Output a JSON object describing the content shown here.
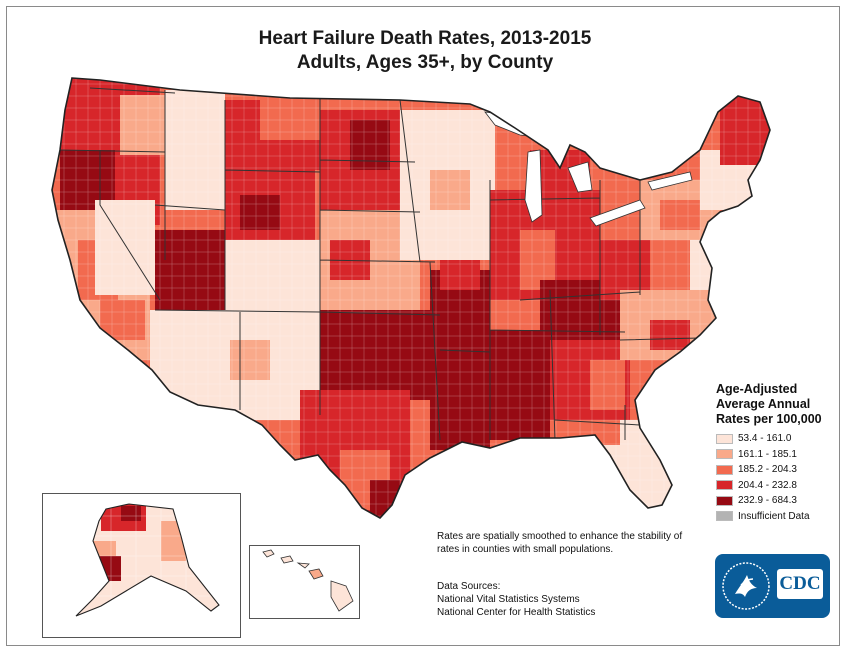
{
  "title": "Heart Failure Death Rates, 2013-2015",
  "subtitle": "Adults, Ages 35+, by County",
  "legend": {
    "title_lines": [
      "Age-Adjusted",
      "Average Annual",
      "Rates per 100,000"
    ],
    "items": [
      {
        "label": "53.4 - 161.0",
        "color": "#fde4d8"
      },
      {
        "label": "161.1 - 185.1",
        "color": "#f9a98a"
      },
      {
        "label": "185.2 - 204.3",
        "color": "#f26a4f"
      },
      {
        "label": "204.4 - 232.8",
        "color": "#d7262a"
      },
      {
        "label": "232.9 - 684.3",
        "color": "#960a13"
      },
      {
        "label": "Insufficient Data",
        "color": "#b3b3b3"
      }
    ]
  },
  "note": "Rates are spatially smoothed to enhance the stability of rates in counties with small populations.",
  "sources": {
    "heading": "Data Sources:",
    "lines": [
      "National Vital Statistics Systems",
      "National Center for Health Statistics"
    ]
  },
  "logo": {
    "text": "CDC",
    "hhs_icon": "hhs-eagle-seal"
  },
  "insets": [
    "Alaska",
    "Hawaii"
  ]
}
